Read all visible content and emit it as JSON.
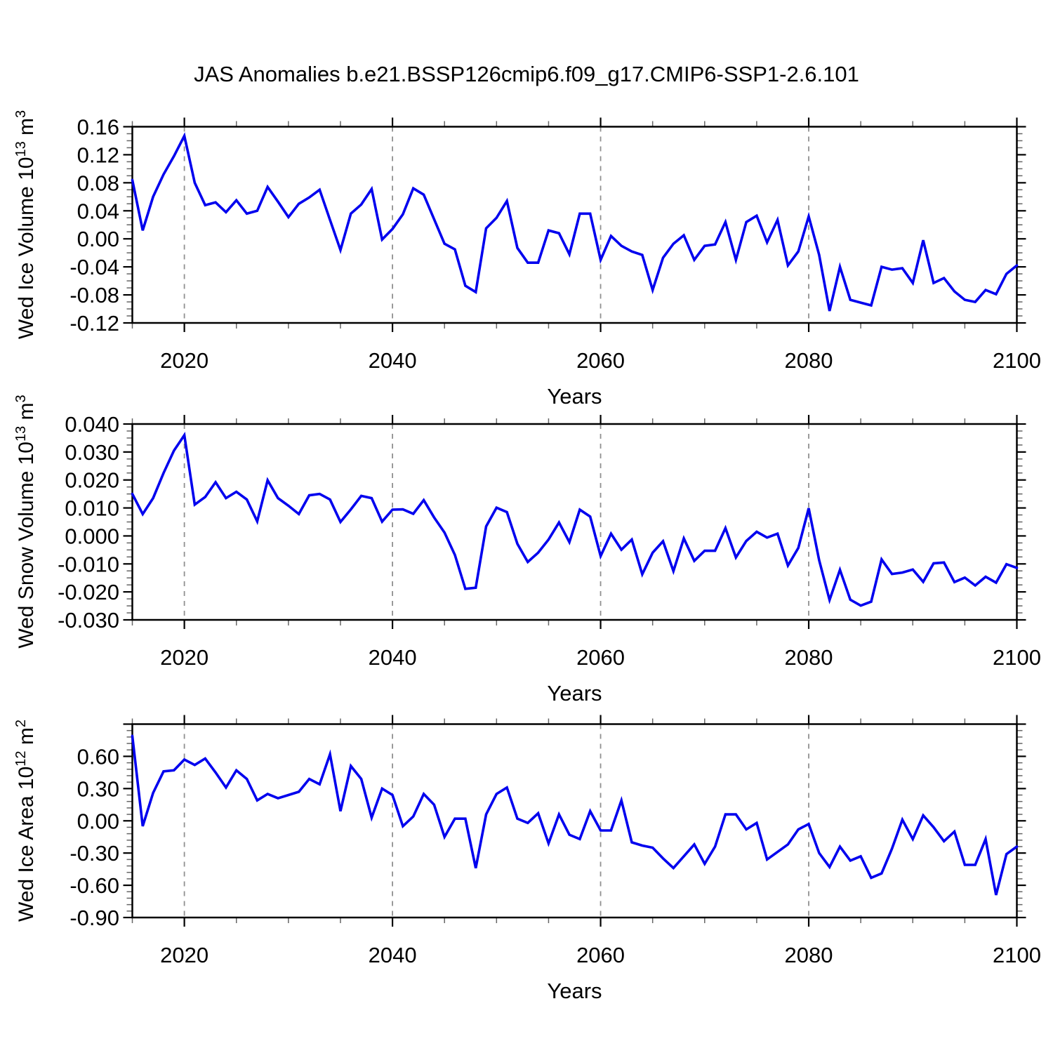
{
  "chart_data": {
    "type": "line",
    "title": "JAS Anomalies b.e21.BSSP126cmip6.f09_g17.CMIP6-SSP1-2.6.101",
    "legend": "none",
    "grid": "vertical-dashed-only",
    "style": {
      "line_color": "#0000ee",
      "grid_color": "#909090",
      "axis_color": "#000000",
      "minor_tick_color": "#666666",
      "background": "#ffffff"
    },
    "x_axis": {
      "label": "Years",
      "range": [
        2015,
        2100
      ],
      "ticks_labeled": [
        2020,
        2040,
        2060,
        2080,
        2100
      ],
      "minor_step": 5,
      "gridlines_at": [
        2020,
        2040,
        2060,
        2080
      ]
    },
    "panels": [
      {
        "name": "wed-ice-volume",
        "ylabel_text": "Wed Ice Volume 10^13 m^3",
        "ylabel": {
          "base": "Wed Ice Volume 10",
          "exp": "13",
          "unit": " m",
          "unit_exp": "3"
        },
        "ylim": [
          -0.12,
          0.16
        ],
        "ymajor_step": 0.04,
        "yminors_per_interval": 3,
        "ytick_decimals": 2,
        "yticks_labeled": [
          0.16,
          0.12,
          0.08,
          0.04,
          0,
          -0.04,
          -0.08,
          -0.12
        ],
        "x_start": 2015,
        "x_step": 1,
        "values": [
          0.084,
          0.012,
          0.06,
          0.092,
          0.118,
          0.147,
          0.08,
          0.048,
          0.052,
          0.038,
          0.055,
          0.036,
          0.04,
          0.074,
          0.053,
          0.031,
          0.05,
          0.059,
          0.07,
          0.027,
          -0.016,
          0.036,
          0.049,
          0.071,
          -0.001,
          0.014,
          0.035,
          0.072,
          0.063,
          0.028,
          -0.007,
          -0.015,
          -0.067,
          -0.076,
          0.015,
          0.03,
          0.054,
          -0.013,
          -0.034,
          -0.034,
          0.012,
          0.008,
          -0.022,
          0.036,
          0.036,
          -0.03,
          0.004,
          -0.01,
          -0.018,
          -0.023,
          -0.073,
          -0.027,
          -0.007,
          0.005,
          -0.03,
          -0.01,
          -0.008,
          0.024,
          -0.03,
          0.024,
          0.033,
          -0.005,
          0.027,
          -0.038,
          -0.018,
          0.032,
          -0.023,
          -0.103,
          -0.04,
          -0.087,
          -0.091,
          -0.095,
          -0.04,
          -0.044,
          -0.042,
          -0.063,
          -0.002,
          -0.063,
          -0.056,
          -0.075,
          -0.087,
          -0.09,
          -0.073,
          -0.079,
          -0.05,
          -0.038
        ]
      },
      {
        "name": "wed-snow-volume",
        "ylabel_text": "Wed Snow Volume 10^13 m^3",
        "ylabel": {
          "base": "Wed Snow Volume 10",
          "exp": "13",
          "unit": " m",
          "unit_exp": "3"
        },
        "ylim": [
          -0.03,
          0.04
        ],
        "ymajor_step": 0.01,
        "yminors_per_interval": 3,
        "ytick_decimals": 3,
        "yticks_labeled": [
          0.04,
          0.03,
          0.02,
          0.01,
          0,
          -0.01,
          -0.02,
          -0.03
        ],
        "x_start": 2015,
        "x_step": 1,
        "values": [
          0.015,
          0.0078,
          0.0135,
          0.0225,
          0.0305,
          0.036,
          0.0112,
          0.0139,
          0.0192,
          0.0135,
          0.0158,
          0.013,
          0.0052,
          0.0199,
          0.0135,
          0.0108,
          0.0078,
          0.0145,
          0.015,
          0.013,
          0.005,
          0.0095,
          0.0143,
          0.0135,
          0.0051,
          0.0094,
          0.0095,
          0.0079,
          0.0128,
          0.0066,
          0.0012,
          -0.0068,
          -0.0189,
          -0.0185,
          0.0034,
          0.0101,
          0.0085,
          -0.0028,
          -0.0093,
          -0.006,
          -0.0013,
          0.0048,
          -0.0022,
          0.0094,
          0.0069,
          -0.0072,
          0.0008,
          -0.0049,
          -0.0013,
          -0.0137,
          -0.006,
          -0.0019,
          -0.0126,
          -0.0009,
          -0.0089,
          -0.0053,
          -0.0053,
          0.0028,
          -0.0077,
          -0.0018,
          0.0015,
          -0.0006,
          0.0008,
          -0.0106,
          -0.0043,
          0.0099,
          -0.0087,
          -0.0229,
          -0.0121,
          -0.0228,
          -0.0249,
          -0.0235,
          -0.0084,
          -0.0136,
          -0.0131,
          -0.012,
          -0.0164,
          -0.0098,
          -0.0095,
          -0.0165,
          -0.0149,
          -0.0177,
          -0.0146,
          -0.0167,
          -0.0101,
          -0.0114
        ]
      },
      {
        "name": "wed-ice-area",
        "ylabel_text": "Wed Ice Area 10^12 m^2",
        "ylabel": {
          "base": "Wed Ice Area 10",
          "exp": "12",
          "unit": " m",
          "unit_exp": "2"
        },
        "ylim": [
          -0.9,
          0.9
        ],
        "ymajor_step": 0.3,
        "yminors_per_interval": 4,
        "ytick_decimals": 2,
        "yticks_labeled": [
          0.6,
          0.3,
          0,
          -0.3,
          -0.6,
          -0.9
        ],
        "x_start": 2015,
        "x_step": 1,
        "values": [
          0.79,
          -0.05,
          0.26,
          0.46,
          0.47,
          0.57,
          0.52,
          0.58,
          0.45,
          0.31,
          0.47,
          0.39,
          0.19,
          0.25,
          0.21,
          0.24,
          0.27,
          0.39,
          0.34,
          0.62,
          0.09,
          0.51,
          0.39,
          0.03,
          0.3,
          0.24,
          -0.05,
          0.04,
          0.25,
          0.15,
          -0.15,
          0.02,
          0.02,
          -0.44,
          0.06,
          0.25,
          0.31,
          0.02,
          -0.02,
          0.07,
          -0.21,
          0.06,
          -0.13,
          -0.17,
          0.09,
          -0.09,
          -0.09,
          0.19,
          -0.2,
          -0.23,
          -0.25,
          -0.35,
          -0.44,
          -0.33,
          -0.22,
          -0.4,
          -0.24,
          0.06,
          0.06,
          -0.08,
          -0.02,
          -0.36,
          -0.29,
          -0.22,
          -0.08,
          -0.03,
          -0.3,
          -0.43,
          -0.24,
          -0.37,
          -0.33,
          -0.53,
          -0.49,
          -0.26,
          0.01,
          -0.17,
          0.05,
          -0.06,
          -0.19,
          -0.1,
          -0.41,
          -0.41,
          -0.17,
          -0.69,
          -0.31,
          -0.24
        ]
      }
    ]
  }
}
